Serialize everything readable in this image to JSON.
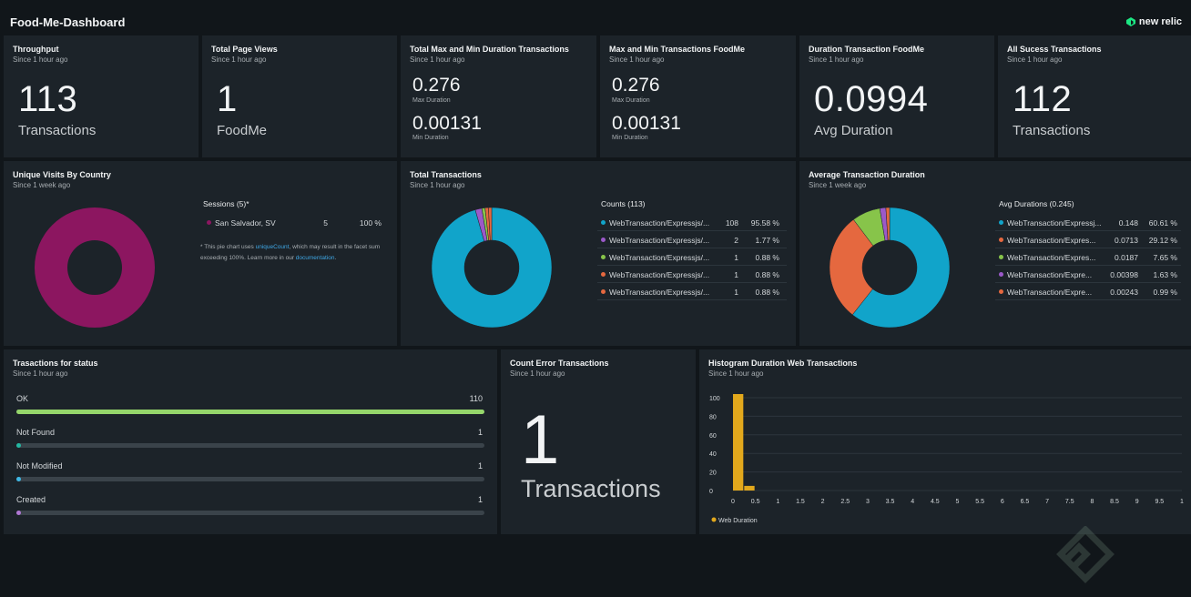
{
  "header": {
    "title": "Food-Me-Dashboard",
    "brand": "new relic"
  },
  "tiles": {
    "throughput": {
      "title": "Throughput",
      "since": "Since 1 hour ago",
      "value": "113",
      "label": "Transactions"
    },
    "page_views": {
      "title": "Total Page Views",
      "since": "Since 1 hour ago",
      "value": "1",
      "label": "FoodMe"
    },
    "total_max_min": {
      "title": "Total Max and Min Duration Transactions",
      "since": "Since 1 hour ago",
      "max_value": "0.276",
      "max_label": "Max Duration",
      "min_value": "0.00131",
      "min_label": "Min Duration"
    },
    "max_min_foodme": {
      "title": "Max and Min Transactions FoodMe",
      "since": "Since 1 hour ago",
      "max_value": "0.276",
      "max_label": "Max Duration",
      "min_value": "0.00131",
      "min_label": "Min Duration"
    },
    "duration_foodme": {
      "title": "Duration Transaction FoodMe",
      "since": "Since 1 hour ago",
      "value": "0.0994",
      "label": "Avg Duration"
    },
    "success": {
      "title": "All Sucess Transactions",
      "since": "Since 1 hour ago",
      "value": "112",
      "label": "Transactions"
    },
    "unique_visits": {
      "title": "Unique Visits By Country",
      "since": "Since 1 week ago",
      "legend_title": "Sessions (5)*",
      "rows": [
        {
          "name": "San Salvador, SV",
          "value": "5",
          "pct": "100 %",
          "color": "#8c1660",
          "share": 100
        }
      ],
      "note_prefix": "* This pie chart uses ",
      "note_link1": "uniqueCount",
      "note_middle": ", which may result in the facet sum exceeding 100%. Learn more in our ",
      "note_link2": "documentation",
      "note_suffix": "."
    },
    "total_transactions": {
      "title": "Total Transactions",
      "since": "Since 1 hour ago",
      "legend_title": "Counts (113)",
      "rows": [
        {
          "name": "WebTransaction/Expressjs/...",
          "value": "108",
          "pct": "95.58 %",
          "color": "#11a4ca",
          "share": 95.58
        },
        {
          "name": "WebTransaction/Expressjs/...",
          "value": "2",
          "pct": "1.77 %",
          "color": "#9b59c9",
          "share": 1.77
        },
        {
          "name": "WebTransaction/Expressjs/...",
          "value": "1",
          "pct": "0.88 %",
          "color": "#87c44a",
          "share": 0.88
        },
        {
          "name": "WebTransaction/Expressjs/...",
          "value": "1",
          "pct": "0.88 %",
          "color": "#e5683f",
          "share": 0.88
        },
        {
          "name": "WebTransaction/Expressjs/...",
          "value": "1",
          "pct": "0.88 %",
          "color": "#e5683f",
          "share": 0.88
        }
      ]
    },
    "avg_duration": {
      "title": "Average Transaction Duration",
      "since": "Since 1 week ago",
      "legend_title": "Avg Durations (0.245)",
      "rows": [
        {
          "name": "WebTransaction/Expressj...",
          "value": "0.148",
          "pct": "60.61 %",
          "color": "#11a4ca",
          "share": 60.61
        },
        {
          "name": "WebTransaction/Expres...",
          "value": "0.0713",
          "pct": "29.12 %",
          "color": "#e5683f",
          "share": 29.12
        },
        {
          "name": "WebTransaction/Expres...",
          "value": "0.0187",
          "pct": "7.65 %",
          "color": "#87c44a",
          "share": 7.65
        },
        {
          "name": "WebTransaction/Expre...",
          "value": "0.00398",
          "pct": "1.63 %",
          "color": "#9b59c9",
          "share": 1.63
        },
        {
          "name": "WebTransaction/Expre...",
          "value": "0.00243",
          "pct": "0.99 %",
          "color": "#e5683f",
          "share": 0.99
        }
      ]
    },
    "status": {
      "title": "Trasactions for status",
      "since": "Since 1 hour ago",
      "rows": [
        {
          "label": "OK",
          "count": "110",
          "fraction": 1.0,
          "color": "#95d66b"
        },
        {
          "label": "Not Found",
          "count": "1",
          "fraction": 0.009,
          "color": "#23b8a2"
        },
        {
          "label": "Not Modified",
          "count": "1",
          "fraction": 0.009,
          "color": "#3fb8e5"
        },
        {
          "label": "Created",
          "count": "1",
          "fraction": 0.009,
          "color": "#b077d4"
        }
      ]
    },
    "errors": {
      "title": "Count Error Transactions",
      "since": "Since 1 hour ago",
      "value": "1",
      "label": "Transactions"
    },
    "histogram": {
      "title": "Histogram Duration Web Transactions",
      "since": "Since 1 hour ago"
    }
  },
  "chart_data": [
    {
      "type": "pie",
      "title": "Unique Visits By Country",
      "categories": [
        "San Salvador, SV"
      ],
      "values": [
        5
      ]
    },
    {
      "type": "pie",
      "title": "Total Transactions",
      "categories": [
        "WebTransaction/Expressjs/...",
        "WebTransaction/Expressjs/...",
        "WebTransaction/Expressjs/...",
        "WebTransaction/Expressjs/...",
        "WebTransaction/Expressjs/..."
      ],
      "values": [
        108,
        2,
        1,
        1,
        1
      ]
    },
    {
      "type": "pie",
      "title": "Average Transaction Duration",
      "categories": [
        "WebTransaction/Expressj...",
        "WebTransaction/Expres...",
        "WebTransaction/Expres...",
        "WebTransaction/Expre...",
        "WebTransaction/Expre..."
      ],
      "values": [
        0.148,
        0.0713,
        0.0187,
        0.00398,
        0.00243
      ]
    },
    {
      "type": "bar",
      "title": "Histogram Duration Web Transactions",
      "x_ticks": [
        "0",
        "0.5",
        "1",
        "1.5",
        "2",
        "2.5",
        "3",
        "3.5",
        "4",
        "4.5",
        "5",
        "5.5",
        "6",
        "6.5",
        "7",
        "7.5",
        "8",
        "8.5",
        "9",
        "9.5",
        "1"
      ],
      "y_ticks": [
        "0",
        "20",
        "40",
        "60",
        "80",
        "100"
      ],
      "ylim": [
        0,
        100
      ],
      "series": [
        {
          "name": "Web Duration",
          "color": "#e2a81c",
          "bins": [
            {
              "x0": 0,
              "x1": 0.25,
              "value": 108
            },
            {
              "x0": 0.25,
              "x1": 0.5,
              "value": 5
            }
          ]
        }
      ],
      "legend": "bottom-left",
      "grid": true
    }
  ]
}
